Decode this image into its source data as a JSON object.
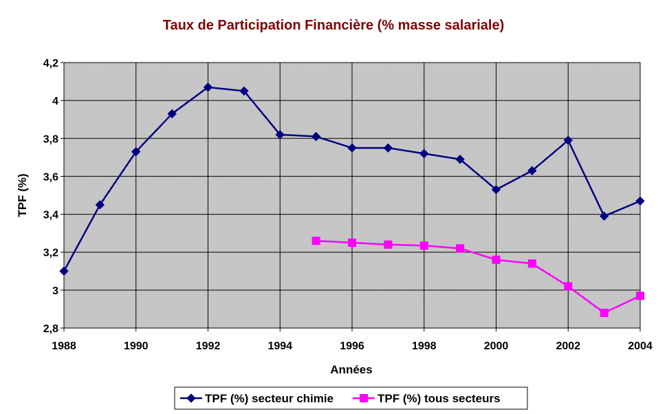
{
  "chart_data": {
    "type": "line",
    "title": "Taux de Participation Financière (% masse salariale)",
    "xlabel": "Années",
    "ylabel": "TPF (%)",
    "xlim": [
      1988,
      2004
    ],
    "ylim": [
      2.8,
      4.2
    ],
    "x_ticks": [
      "1988",
      "1990",
      "1992",
      "1994",
      "1996",
      "1998",
      "2000",
      "2002",
      "2004"
    ],
    "y_ticks": [
      "2,8",
      "3",
      "3,2",
      "3,4",
      "3,6",
      "3,8",
      "4",
      "4,2"
    ],
    "grid": true,
    "legend_position": "bottom",
    "series": [
      {
        "name": "TPF (%) secteur chimie",
        "color": "#000080",
        "marker": "diamond",
        "x": [
          1988,
          1989,
          1990,
          1991,
          1992,
          1993,
          1994,
          1995,
          1996,
          1997,
          1998,
          1999,
          2000,
          2001,
          2002,
          2003,
          2004
        ],
        "y": [
          3.1,
          3.45,
          3.73,
          3.93,
          4.07,
          4.05,
          3.82,
          3.81,
          3.75,
          3.75,
          3.72,
          3.69,
          3.53,
          3.63,
          3.79,
          3.39,
          3.47
        ]
      },
      {
        "name": "TPF (%) tous secteurs",
        "color": "#FF00FF",
        "marker": "square",
        "x": [
          1995,
          1996,
          1997,
          1998,
          1999,
          2000,
          2001,
          2002,
          2003,
          2004
        ],
        "y": [
          3.26,
          3.25,
          3.24,
          3.235,
          3.22,
          3.16,
          3.14,
          3.02,
          2.88,
          2.97
        ]
      }
    ]
  }
}
